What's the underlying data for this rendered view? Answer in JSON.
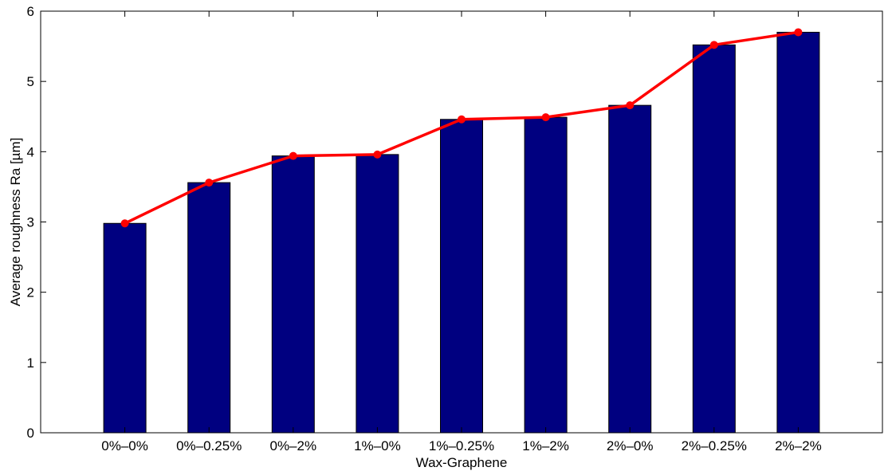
{
  "chart_data": {
    "type": "bar",
    "xlabel": "Wax-Graphene",
    "ylabel": "Average roughness Ra [µm]",
    "categories": [
      "0%–0%",
      "0%–0.25%",
      "0%–2%",
      "1%–0%",
      "1%–0.25%",
      "1%–2%",
      "2%–0%",
      "2%–0.25%",
      "2%–2%"
    ],
    "series": [
      {
        "values": [
          2.98,
          3.56,
          3.94,
          3.96,
          4.46,
          4.49,
          4.66,
          5.52,
          5.7
        ]
      },
      {
        "values": [
          2.98,
          3.56,
          3.94,
          3.96,
          4.46,
          4.49,
          4.66,
          5.52,
          5.7
        ]
      }
    ],
    "ylim": [
      0,
      6
    ],
    "yticks": [
      "0",
      "1",
      "2",
      "3",
      "4",
      "5",
      "6"
    ],
    "grid": false,
    "bar_color": "#000080",
    "line_color": "#ff0000"
  }
}
